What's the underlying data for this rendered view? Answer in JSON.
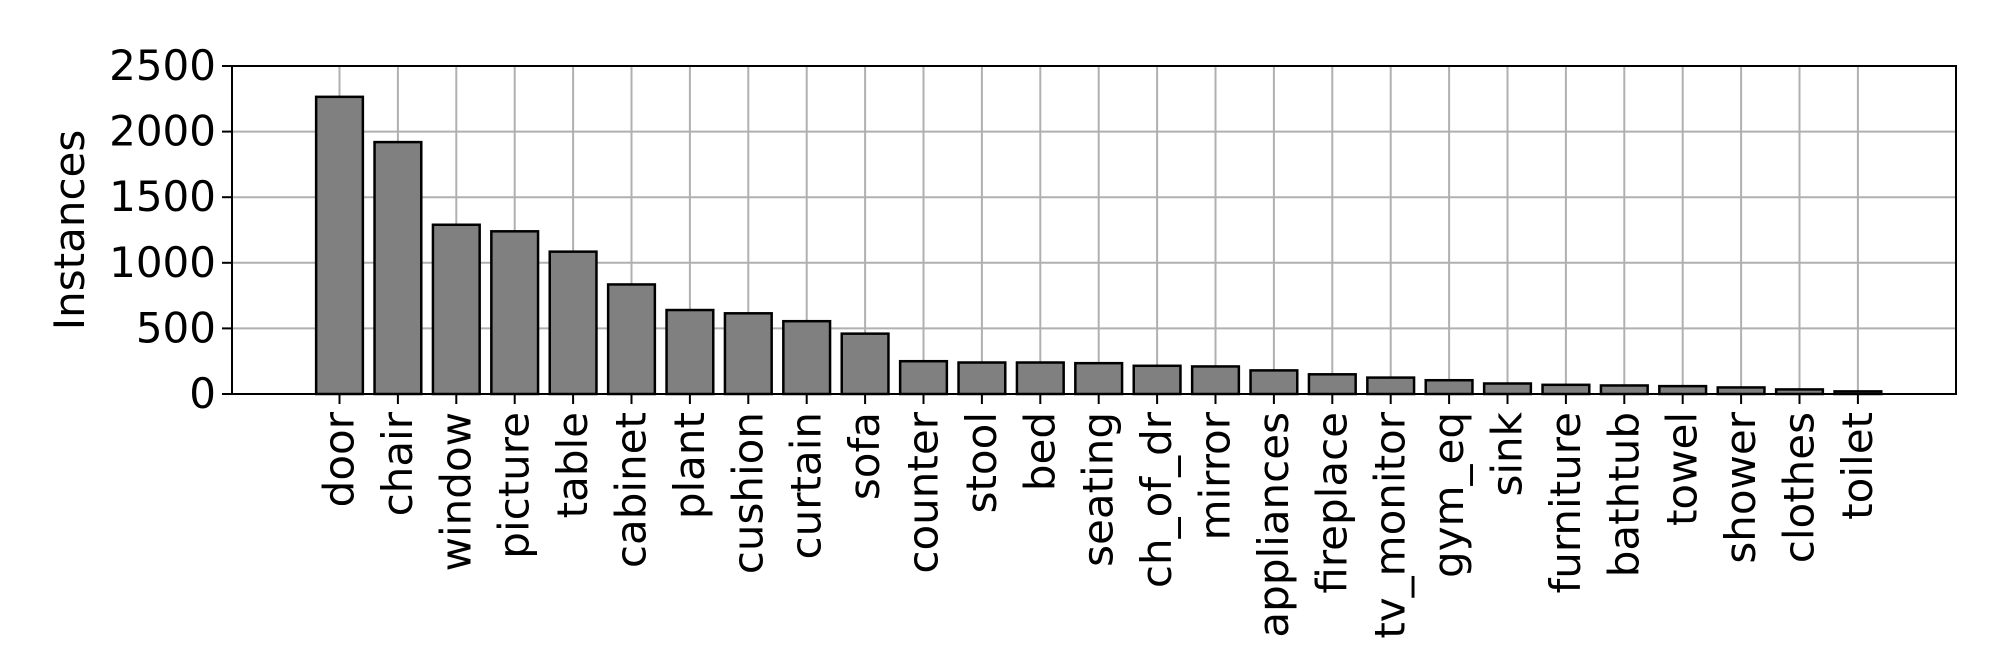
{
  "chart_data": {
    "type": "bar",
    "title": "",
    "xlabel": "",
    "ylabel": "Instances",
    "ylim": [
      0,
      2500
    ],
    "yticks": [
      0,
      500,
      1000,
      1500,
      2000,
      2500
    ],
    "grid": true,
    "categories": [
      "door",
      "chair",
      "window",
      "picture",
      "table",
      "cabinet",
      "plant",
      "cushion",
      "curtain",
      "sofa",
      "counter",
      "stool",
      "bed",
      "seating",
      "ch_of_dr",
      "mirror",
      "appliances",
      "fireplace",
      "tv_monitor",
      "gym_eq",
      "sink",
      "furniture",
      "bathtub",
      "towel",
      "shower",
      "clothes",
      "toilet"
    ],
    "values": [
      2265,
      1920,
      1290,
      1240,
      1085,
      835,
      640,
      615,
      555,
      460,
      250,
      240,
      240,
      235,
      215,
      210,
      180,
      150,
      125,
      105,
      80,
      70,
      65,
      60,
      50,
      35,
      20
    ],
    "colors": {
      "bar_fill": "#808080",
      "bar_edge": "#000000",
      "grid": "#b0b0b0",
      "axes": "#000000"
    }
  }
}
